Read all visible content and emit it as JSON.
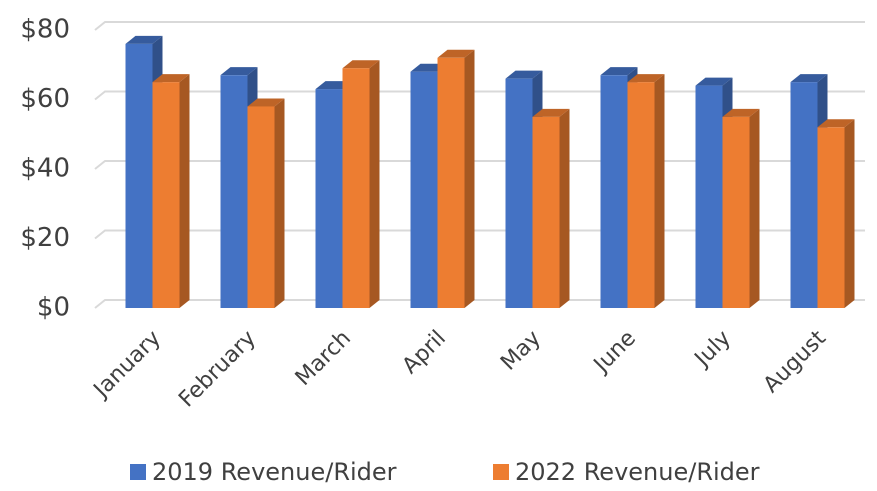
{
  "chart_data": {
    "type": "bar3d",
    "categories": [
      "January",
      "February",
      "March",
      "April",
      "May",
      "June",
      "July",
      "August"
    ],
    "series": [
      {
        "name": "2019 Revenue/Rider",
        "color": "#4472c4",
        "values": [
          76,
          67,
          63,
          68,
          66,
          67,
          64,
          65
        ]
      },
      {
        "name": "2022 Revenue/Rider",
        "color": "#ed7d31",
        "values": [
          65,
          58,
          69,
          72,
          55,
          65,
          55,
          52
        ]
      }
    ],
    "ylim": [
      0,
      80
    ],
    "yticks": [
      {
        "value": 0,
        "label": "$0"
      },
      {
        "value": 20,
        "label": "$20"
      },
      {
        "value": 40,
        "label": "$40"
      },
      {
        "value": 60,
        "label": "$60"
      },
      {
        "value": 80,
        "label": "$80"
      }
    ],
    "grid": true,
    "legend": "bottom"
  }
}
